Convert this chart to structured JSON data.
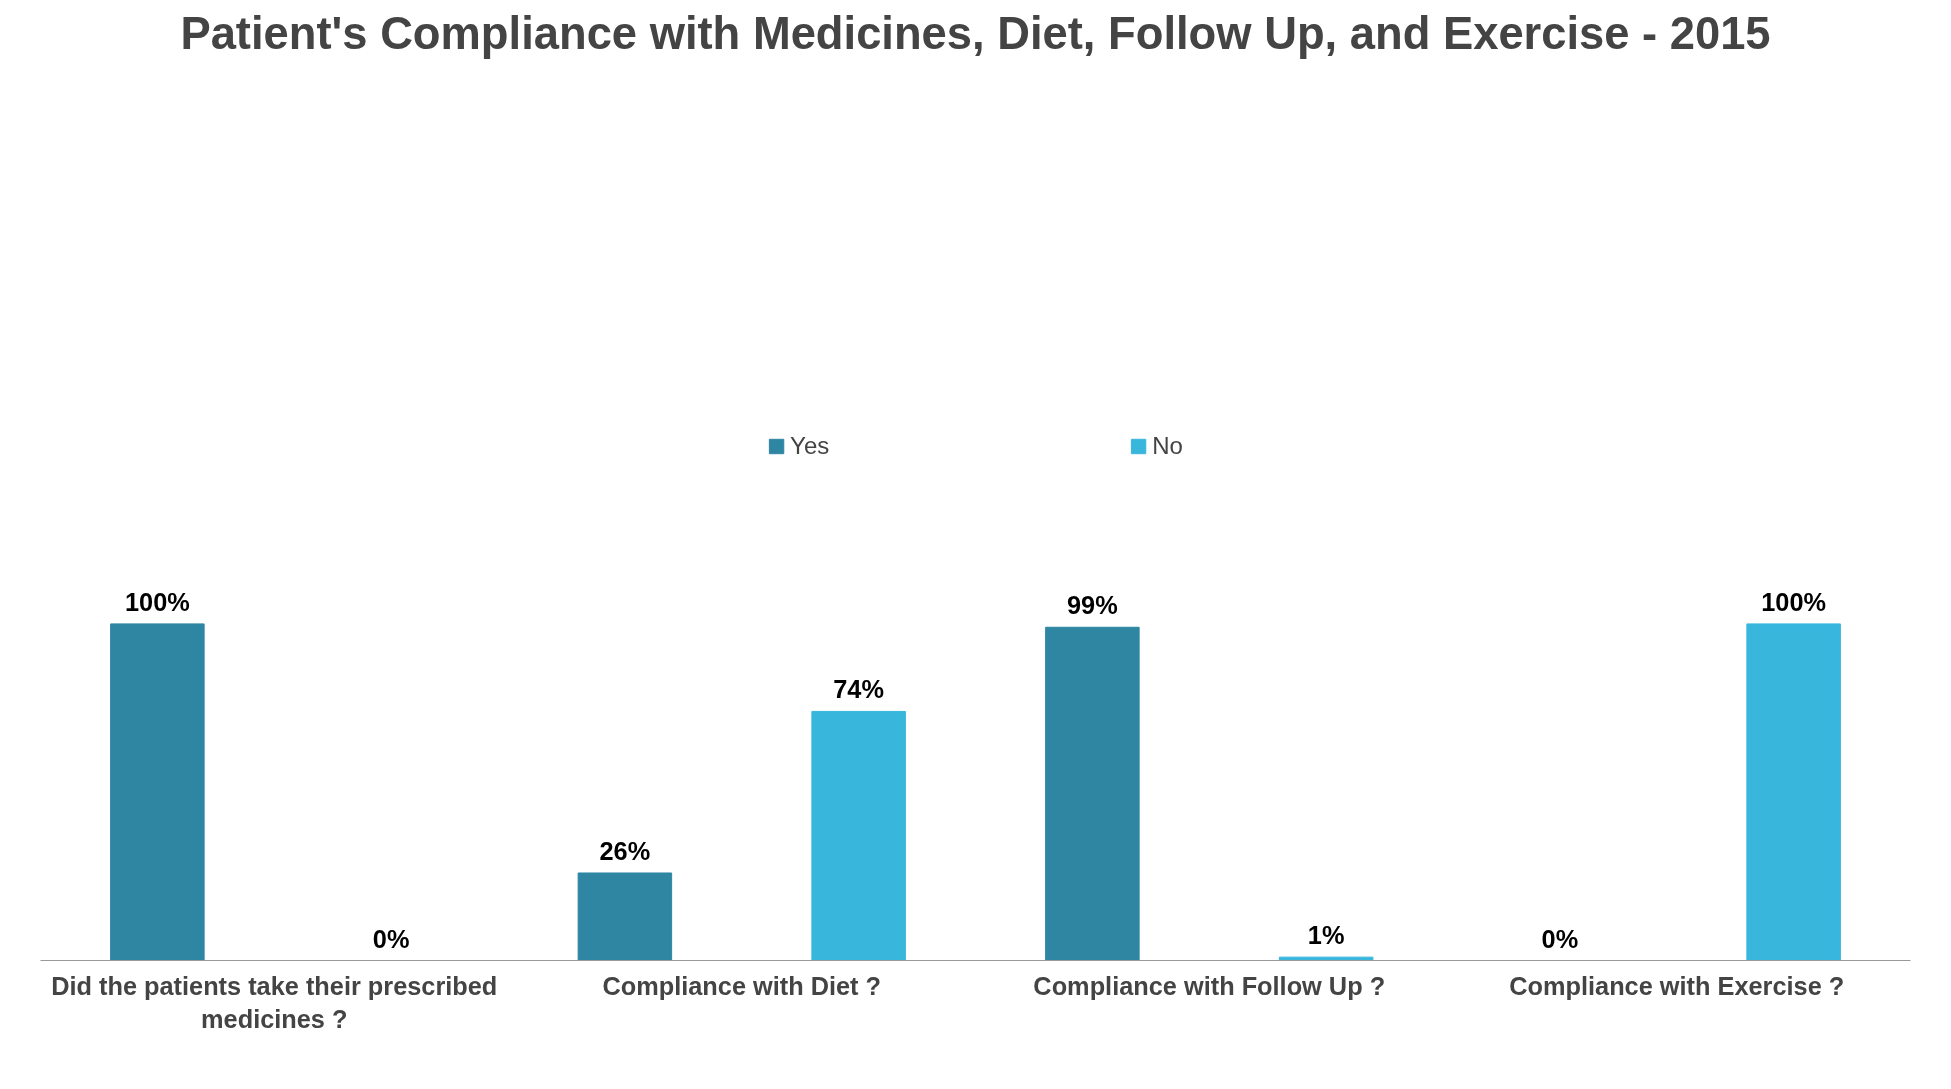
{
  "chart_data": {
    "type": "bar",
    "title": "Patient's Compliance with Medicines, Diet, Follow Up, and Exercise - 2015",
    "categories": [
      "Did the patients take their prescribed medicines ?",
      "Compliance with Diet ?",
      "Compliance with Follow Up ?",
      "Compliance with Exercise ?"
    ],
    "series": [
      {
        "name": "Yes",
        "color": "#2e86a3",
        "values": [
          100,
          26,
          99,
          0
        ],
        "value_labels": [
          "100%",
          "26%",
          "99%",
          "0%"
        ]
      },
      {
        "name": "No",
        "color": "#38b6dc",
        "values": [
          0,
          74,
          1,
          100
        ],
        "value_labels": [
          "0%",
          "74%",
          "1%",
          "100%"
        ]
      }
    ],
    "legend": "top",
    "grid": false
  }
}
